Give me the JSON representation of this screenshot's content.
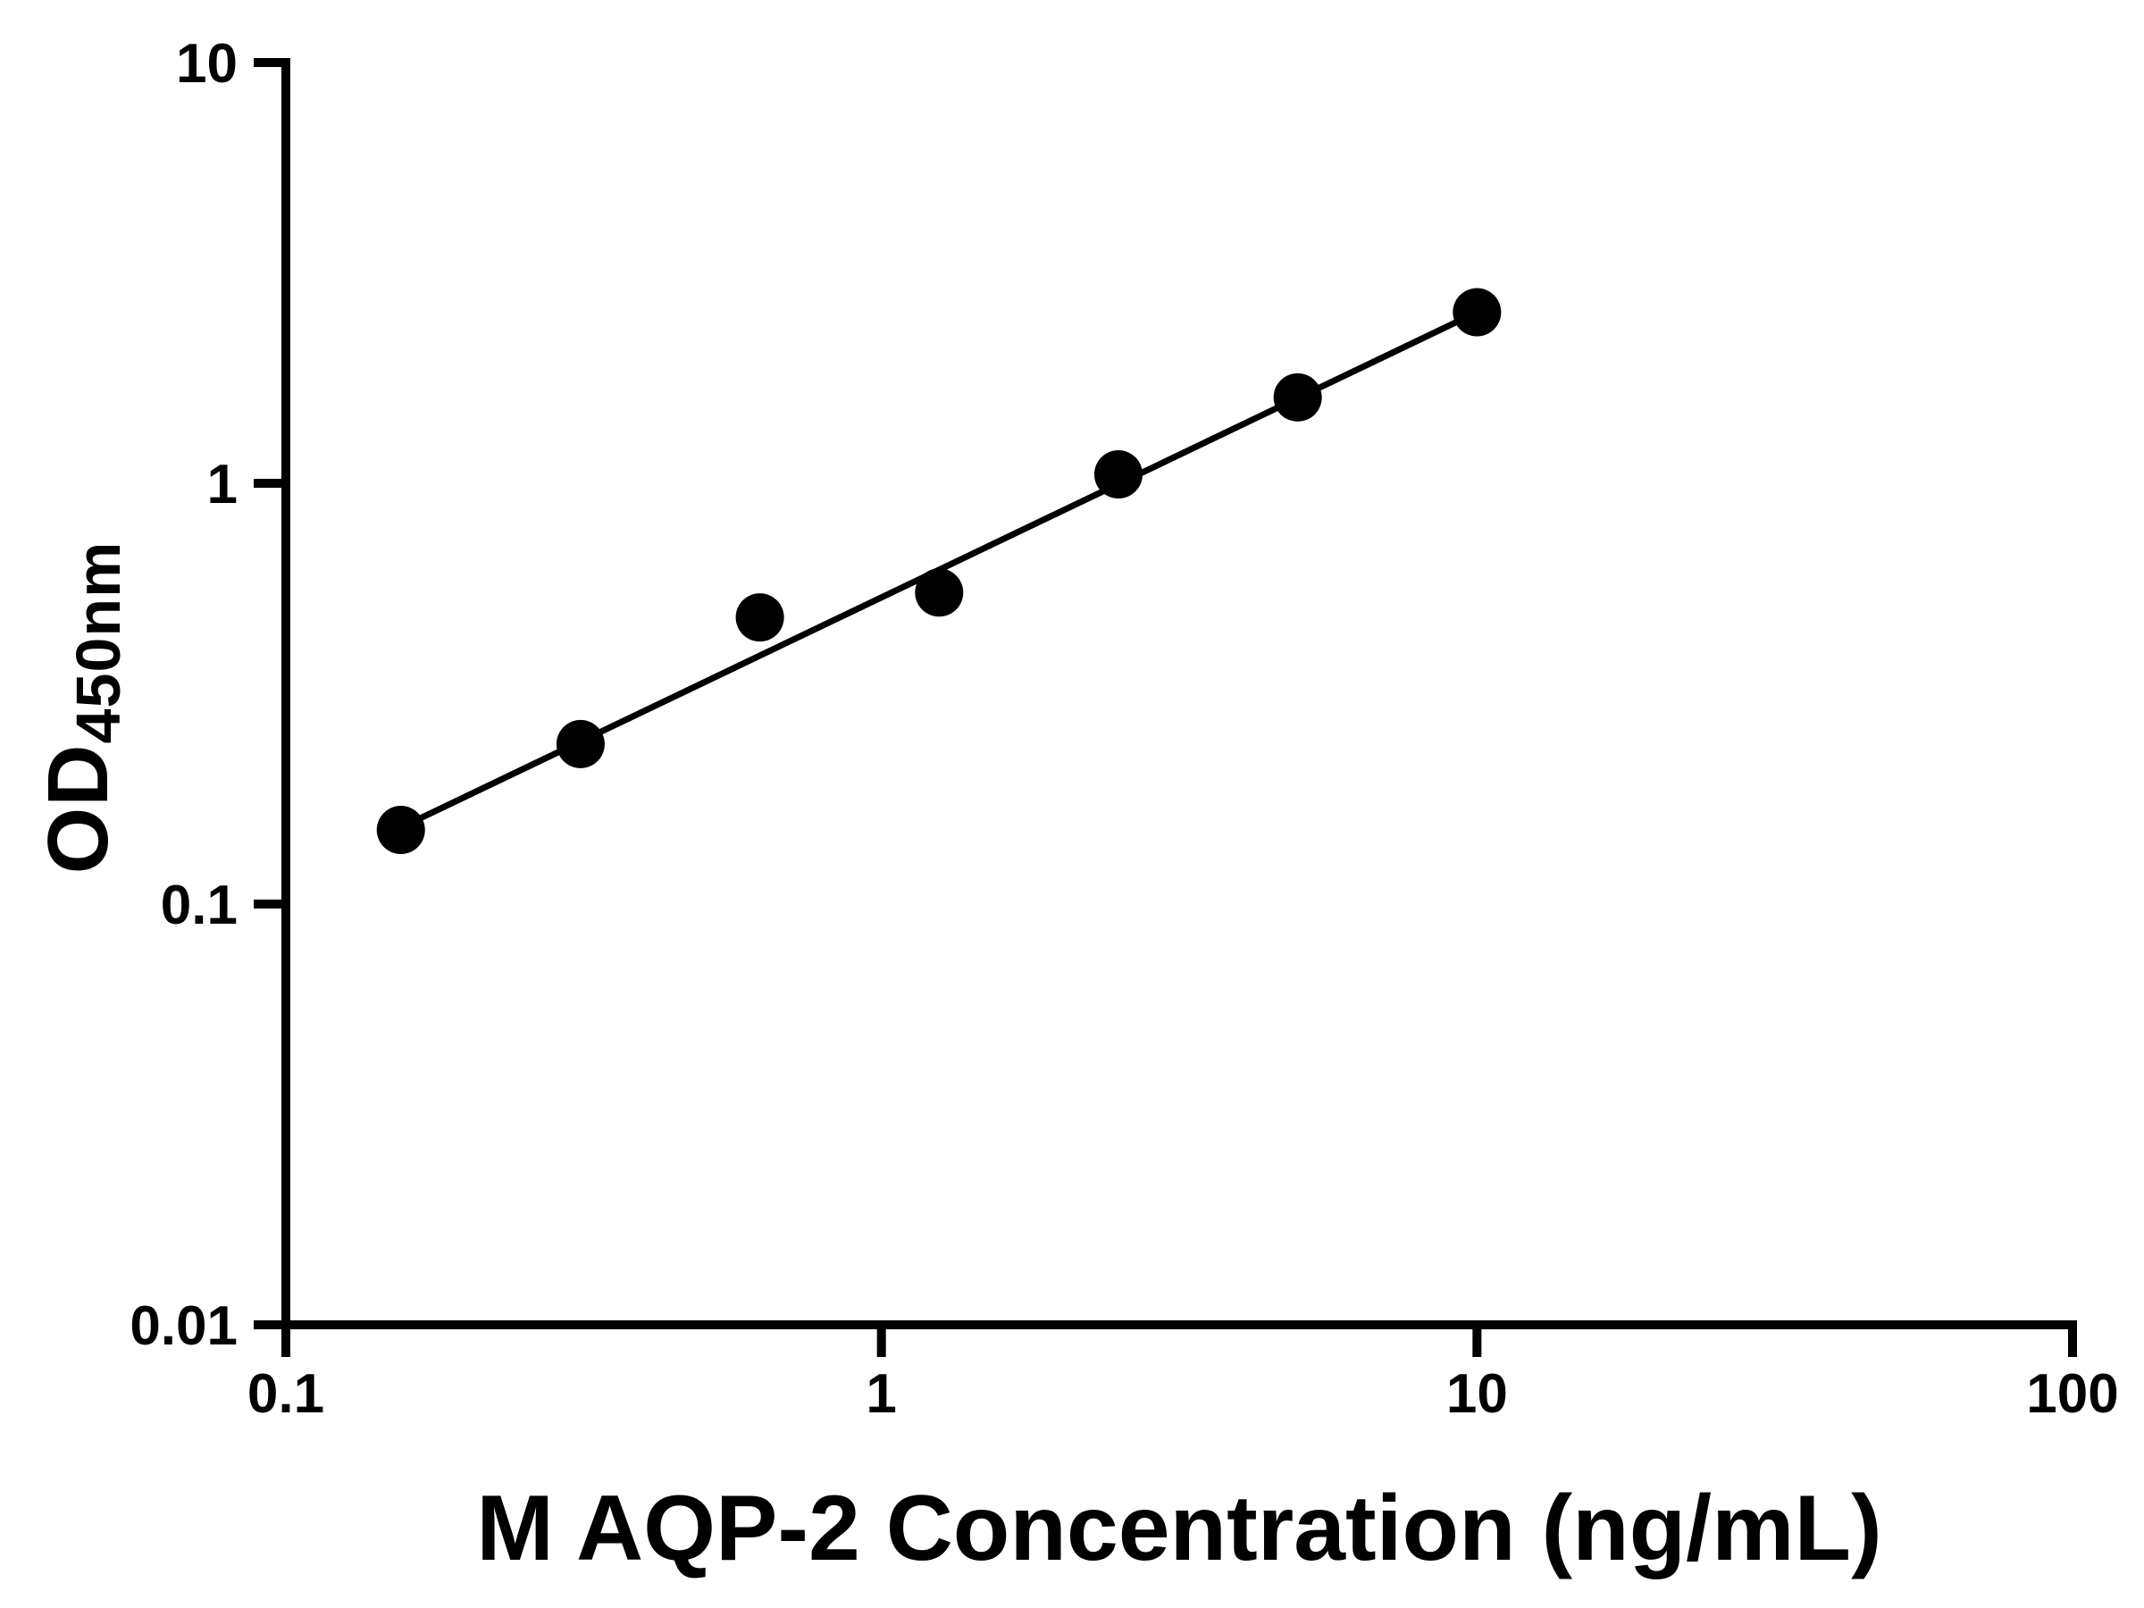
{
  "chart_data": {
    "type": "scatter",
    "title": "",
    "xlabel": "M AQP-2 Concentration (ng/mL)",
    "ylabel_main": "OD",
    "ylabel_sub": "450nm",
    "x_scale": "log",
    "y_scale": "log",
    "xlim": [
      0.1,
      100
    ],
    "ylim": [
      0.01,
      10
    ],
    "grid": false,
    "legend": "none",
    "x_ticks": [
      {
        "value": 0.1,
        "label": "0.1"
      },
      {
        "value": 1,
        "label": "1"
      },
      {
        "value": 10,
        "label": "10"
      },
      {
        "value": 100,
        "label": "100"
      }
    ],
    "y_ticks": [
      {
        "value": 0.01,
        "label": "0.01"
      },
      {
        "value": 0.1,
        "label": "0.1"
      },
      {
        "value": 1,
        "label": "1"
      },
      {
        "value": 10,
        "label": "10"
      }
    ],
    "points": [
      {
        "x": 0.156,
        "y": 0.15
      },
      {
        "x": 0.3125,
        "y": 0.24
      },
      {
        "x": 0.625,
        "y": 0.48
      },
      {
        "x": 1.25,
        "y": 0.55
      },
      {
        "x": 2.5,
        "y": 1.05
      },
      {
        "x": 5,
        "y": 1.6
      },
      {
        "x": 10,
        "y": 2.55
      }
    ],
    "trendline": {
      "x1": 0.156,
      "y1": 0.152,
      "x2": 10,
      "y2": 2.55
    },
    "colors": {
      "marker": "#000000",
      "line": "#000000",
      "axis": "#000000",
      "background": "#ffffff"
    }
  }
}
